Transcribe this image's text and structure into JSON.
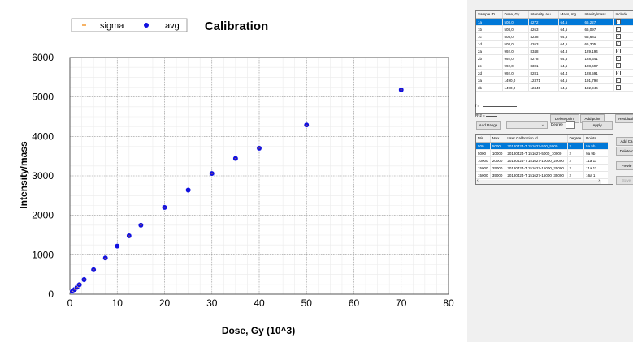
{
  "chart_data": {
    "type": "scatter",
    "title": "Calibration",
    "xlabel": "Dose, Gy (10^3)",
    "ylabel": "Intensity/mass",
    "xlim": [
      0,
      80
    ],
    "ylim": [
      0,
      6000
    ],
    "xticks": [
      "0",
      "10",
      "20",
      "30",
      "40",
      "50",
      "60",
      "70",
      "80"
    ],
    "yticks": [
      "0",
      "1000",
      "2000",
      "3000",
      "4000",
      "5000",
      "6000"
    ],
    "grid": true,
    "legend_position": "top-left",
    "legend": [
      "sigma",
      "avg"
    ],
    "series": [
      {
        "name": "avg",
        "color": "#1010e0",
        "x": [
          0.5,
          1.0,
          1.5,
          2.0,
          3.0,
          5.0,
          7.5,
          10,
          12.5,
          15,
          20,
          25,
          30,
          35,
          40,
          50,
          70
        ],
        "y": [
          70,
          120,
          175,
          240,
          370,
          620,
          920,
          1220,
          1480,
          1750,
          2200,
          2640,
          3060,
          3440,
          3700,
          4290,
          5180
        ]
      }
    ]
  },
  "top_table": {
    "headers": [
      "Sample ID",
      "Dose, Gy",
      "Intensity, a.u.",
      "Mass, mg",
      "Intesity/mass",
      "Include"
    ],
    "rows": [
      [
        "1a",
        "508,0",
        "4272",
        "64,5",
        "66,227"
      ],
      [
        "1b",
        "508,0",
        "4263",
        "64,5",
        "66,097"
      ],
      [
        "1c",
        "508,0",
        "4238",
        "64,5",
        "65,681"
      ],
      [
        "1d",
        "508,0",
        "4263",
        "64,6",
        "66,305"
      ],
      [
        "2a",
        "992,0",
        "8348",
        "64,8",
        "129,194"
      ],
      [
        "2b",
        "992,0",
        "8278",
        "64,5",
        "128,341"
      ],
      [
        "2c",
        "992,0",
        "8301",
        "64,6",
        "128,697"
      ],
      [
        "2d",
        "992,0",
        "8281",
        "64,4",
        "128,591"
      ],
      [
        "3a",
        "1490,0",
        "12371",
        "64,5",
        "191,798"
      ],
      [
        "3b",
        "1490,0",
        "12445",
        "64,5",
        "192,946"
      ]
    ]
  },
  "buttons": {
    "delete_point": "Delete point",
    "add_point": "Add point",
    "residual": "Residual",
    "add_range": "Add Range",
    "apply": "Apply",
    "add_cal": "Add Ca",
    "delete_cal": "Delete c",
    "preview": "Previe",
    "save": "Save"
  },
  "labels": {
    "f": "f =",
    "r2": "R^2 =",
    "degree": "Degree"
  },
  "range_table": {
    "headers": [
      "Min",
      "Max",
      "User Calibration Id",
      "Degree",
      "Points"
    ],
    "rows": [
      [
        "500",
        "5000",
        "20180424-T 151627-500_5000",
        "2",
        "5a 5b"
      ],
      [
        "5000",
        "10000",
        "20180424-T 151627-5000_10000",
        "2",
        "9a 9b"
      ],
      [
        "10000",
        "20000",
        "20180424-T 151627-10000_20000",
        "2",
        "11a 11"
      ],
      [
        "15000",
        "25000",
        "20180424-T 151627-15000_25000",
        "2",
        "11a 11"
      ],
      [
        "15000",
        "35000",
        "20180424-T 151627-15000_35000",
        "2",
        "16a 1"
      ]
    ]
  }
}
